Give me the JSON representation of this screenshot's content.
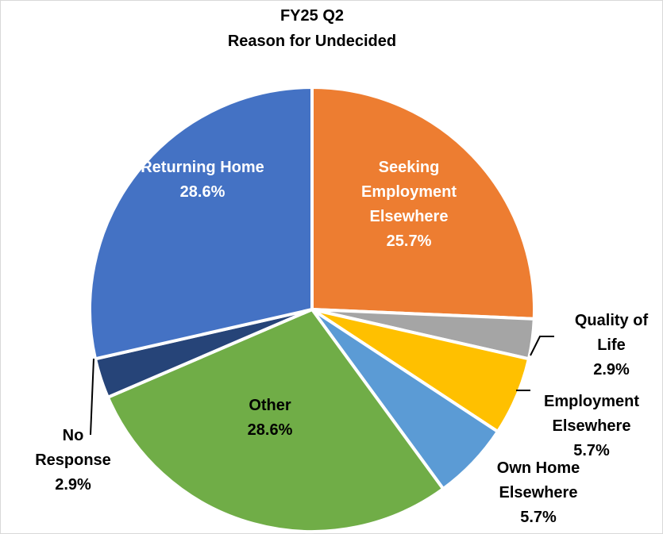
{
  "chart_data": {
    "type": "pie",
    "title": "FY25 Q2",
    "subtitle": "Reason for Undecided",
    "categories": [
      "Seeking Employment Elsewhere",
      "Quality of Life",
      "Employment Elsewhere",
      "Own Home Elsewhere",
      "Other",
      "No Response",
      "Returning Home"
    ],
    "values": [
      25.7,
      2.9,
      5.7,
      5.7,
      28.6,
      2.9,
      28.6
    ],
    "value_labels": [
      "25.7%",
      "2.9%",
      "5.7%",
      "5.7%",
      "28.6%",
      "2.9%",
      "28.6%"
    ],
    "colors": [
      "#ed7d31",
      "#a5a5a5",
      "#ffc000",
      "#5b9bd5",
      "#70ad47",
      "#264478",
      "#4472c4"
    ]
  }
}
